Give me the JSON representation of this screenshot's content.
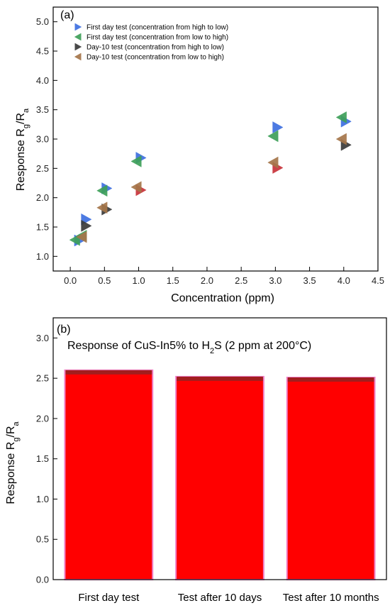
{
  "chart_data": [
    {
      "type": "scatter",
      "panel_label": "(a)",
      "xlabel": "Concentration (ppm)",
      "ylabel_parts": [
        "Response R",
        "g",
        "/R",
        "a"
      ],
      "xlim": [
        -0.25,
        4.5
      ],
      "ylim": [
        0.75,
        5.25
      ],
      "xticks": [
        "0.0",
        "0.5",
        "1.0",
        "1.5",
        "2.0",
        "2.5",
        "3.0",
        "3.5",
        "4.0",
        "4.5"
      ],
      "xtick_values": [
        0.0,
        0.5,
        1.0,
        1.5,
        2.0,
        2.5,
        3.0,
        3.5,
        4.0,
        4.5
      ],
      "yticks": [
        "1.0",
        "1.5",
        "2.0",
        "2.5",
        "3.0",
        "3.5",
        "4.0",
        "4.5",
        "5.0"
      ],
      "ytick_values": [
        1.0,
        1.5,
        2.0,
        2.5,
        3.0,
        3.5,
        4.0,
        4.5,
        5.0
      ],
      "legend_position": "top-left",
      "series": [
        {
          "name": "First day test (concentration from high to low)",
          "marker": "triangle-right",
          "color": "#3d6fe0",
          "points": [
            [
              0.1,
              1.27
            ],
            [
              0.2,
              1.63
            ],
            [
              0.5,
              2.16
            ],
            [
              1.0,
              2.68
            ],
            [
              3.0,
              3.2
            ],
            [
              4.0,
              3.3
            ]
          ]
        },
        {
          "name": "First day test (concentration from low to high)",
          "marker": "triangle-left",
          "color": "#3ea05a",
          "points": [
            [
              0.1,
              1.28
            ],
            [
              0.2,
              1.35
            ],
            [
              0.5,
              2.12
            ],
            [
              1.0,
              2.62
            ],
            [
              3.0,
              3.05
            ],
            [
              4.0,
              3.37
            ]
          ]
        },
        {
          "name": "Day-10 test (concentration from high to low)",
          "marker": "triangle-right",
          "color": "#3a3a3a",
          "points": [
            [
              0.2,
              1.52
            ],
            [
              0.5,
              1.8
            ],
            [
              1.0,
              2.13
            ],
            [
              3.0,
              2.51
            ],
            [
              4.0,
              2.9
            ]
          ]
        },
        {
          "name": "Day-10 test (concentration from low to high)",
          "marker": "triangle-left",
          "color": "#a5764a",
          "points": [
            [
              0.2,
              1.33
            ],
            [
              0.5,
              1.83
            ],
            [
              1.0,
              2.18
            ],
            [
              3.0,
              2.6
            ],
            [
              4.0,
              3.0
            ]
          ]
        }
      ],
      "overlay_colors": {
        "day10_high_to_low_red": "#c8333a"
      }
    },
    {
      "type": "bar",
      "panel_label": "(b)",
      "annotation_parts": [
        "Response of CuS-In5% to H",
        "2",
        "S (2 ppm at 200°C)"
      ],
      "ylabel_parts": [
        "Response R",
        "g",
        "/R",
        "a"
      ],
      "ylim": [
        0.0,
        3.25
      ],
      "yticks": [
        "0.0",
        "0.5",
        "1.0",
        "1.5",
        "2.0",
        "2.5",
        "3.0"
      ],
      "ytick_values": [
        0.0,
        0.5,
        1.0,
        1.5,
        2.0,
        2.5,
        3.0
      ],
      "categories": [
        "First day test",
        "Test after 10 days",
        "Test after 10 months"
      ],
      "values": [
        2.6,
        2.52,
        2.51
      ],
      "bar_color": "#ff0000",
      "bar_edge_color": "#a11e1e",
      "bar_outline_color": "#f080c8"
    }
  ]
}
